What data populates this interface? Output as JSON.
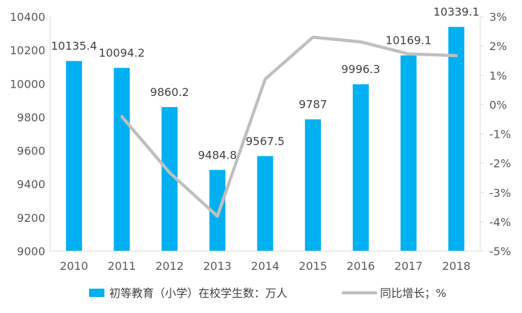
{
  "chart_data": {
    "type": "bar",
    "categories": [
      "2010",
      "2011",
      "2012",
      "2013",
      "2014",
      "2015",
      "2016",
      "2017",
      "2018"
    ],
    "series": [
      {
        "name": "初等教育（小学）在校学生数：万人",
        "type": "bar",
        "axis": "left",
        "color": "#00B0F0",
        "values": [
          10135.4,
          10094.2,
          9860.2,
          9484.8,
          9567.5,
          9787,
          9996.3,
          10169.1,
          10339.1
        ],
        "labels": [
          "10135.4",
          "10094.2",
          "9860.2",
          "9484.8",
          "9567.5",
          "9787",
          "9996.3",
          "10169.1",
          "10339.1"
        ]
      },
      {
        "name": "同比增长；%",
        "type": "line",
        "axis": "right",
        "color": "#BFBFBF",
        "values": [
          null,
          -0.41,
          -2.32,
          -3.81,
          0.87,
          2.3,
          2.14,
          1.73,
          1.67
        ]
      }
    ],
    "y_left": {
      "min": 9000,
      "max": 10400,
      "step": 200,
      "ticks": [
        "9000",
        "9200",
        "9400",
        "9600",
        "9800",
        "10000",
        "10200",
        "10400"
      ]
    },
    "y_right": {
      "min": -5,
      "max": 3,
      "step": 1,
      "ticks": [
        "-5%",
        "-4%",
        "-3%",
        "-2%",
        "-1%",
        "0%",
        "1%",
        "2%",
        "3%"
      ]
    },
    "grid": false,
    "legend_position": "bottom"
  }
}
